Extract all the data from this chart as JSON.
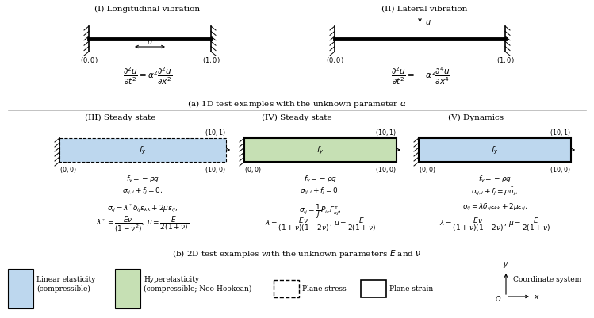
{
  "bg_color": "#ffffff",
  "fig_width": 7.49,
  "fig_height": 4.02,
  "panel_I_title": "(I) Longitudinal vibration",
  "panel_II_title": "(II) Lateral vibration",
  "panel_III_title": "(III) Steady state",
  "panel_IV_title": "(IV) Steady state",
  "panel_V_title": "(V) Dynamics",
  "section_a_caption": "(a) 1D test examples with the unknown parameter $\\alpha$",
  "section_b_caption": "(b) 2D test examples with the unknown parameters $E$ and $\\nu$",
  "blue_fill": "#bdd7ee",
  "green_fill": "#c6e0b4",
  "coord_00": "$(0, 0)$",
  "coord_10": "$(1, 0)$",
  "coord_100": "$(10, 0)$",
  "coord_101": "$(10, 1)$",
  "fy_eq": "$f_y=-\\rho g$",
  "eq3_1": "$\\sigma_{ij,i}+f_j=0,$",
  "eq3_2": "$\\sigma_{ij}=\\lambda^*\\delta_{ij}\\varepsilon_{kk}+2\\mu\\varepsilon_{ij},$",
  "eq3_3": "$\\lambda^*=\\dfrac{E\\nu}{(1-\\nu^2)},\\,\\mu=\\dfrac{E}{2(1+\\nu)}$",
  "eq4_1": "$\\sigma_{ij,i}+f_j=0,$",
  "eq4_2": "$\\sigma_{ij}=\\dfrac{1}{J}P_{ik}F_{kj}^{\\mathrm{T}},$",
  "eq4_3": "$\\lambda=\\dfrac{E\\nu}{(1+\\nu)(1-2\\nu)},\\,\\mu=\\dfrac{E}{2(1+\\nu)}$",
  "eq5_1": "$\\sigma_{ij,i}+f_j=\\rho\\ddot{u}_j,$",
  "eq5_2": "$\\sigma_{ij}=\\lambda\\delta_{ij}\\varepsilon_{kk}+2\\mu\\varepsilon_{ij},$",
  "eq5_3": "$\\lambda=\\dfrac{E\\nu}{(1+\\nu)(1-2\\nu)},\\,\\mu=\\dfrac{E}{2(1+\\nu)}$",
  "leg_blue1": "Linear elasticity",
  "leg_blue2": "(compressible)",
  "leg_green1": "Hyperelasticity",
  "leg_green2": "(compressible; Neo-Hookean)",
  "leg_dashed": "Plane stress",
  "leg_solid": "Plane strain",
  "leg_coord": "Coordinate system"
}
